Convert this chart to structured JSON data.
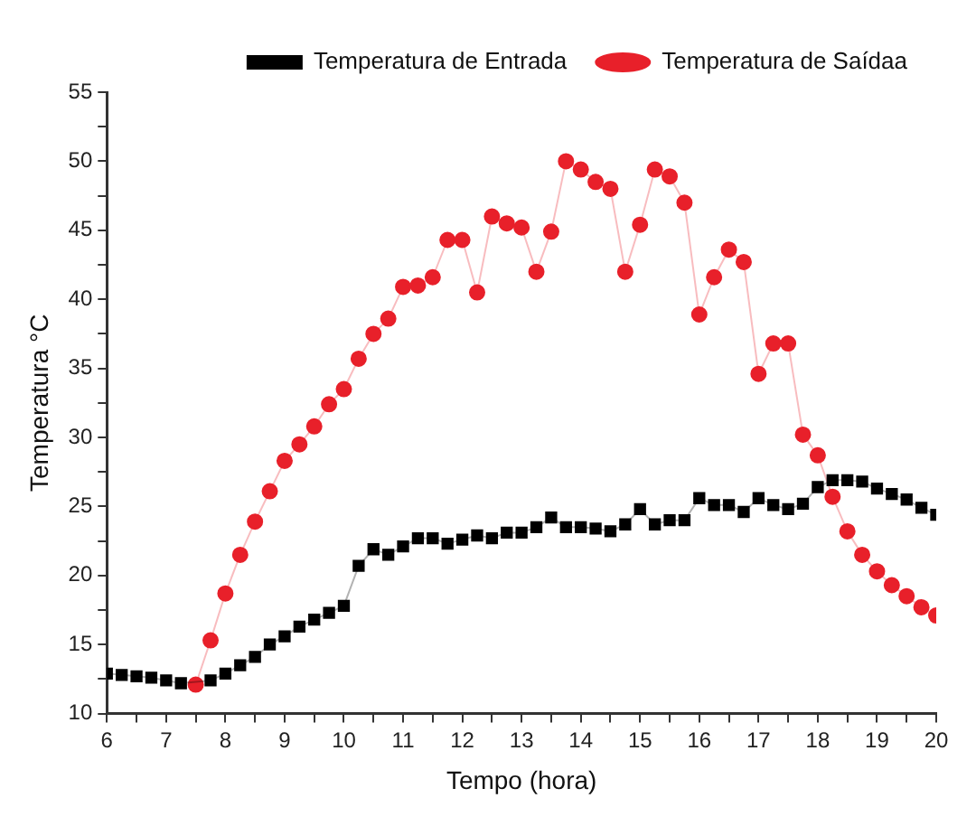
{
  "chart_data": {
    "type": "line",
    "xlabel": "Tempo (hora)",
    "ylabel": "Temperatura °C",
    "legend": "top right",
    "grid": false,
    "xlim": [
      6,
      20
    ],
    "ylim": [
      10,
      55
    ],
    "xticks": [
      6,
      {
        "value": 6.5,
        "label": null
      },
      7,
      {
        "value": 7.5,
        "label": null
      },
      8,
      {
        "value": 8.5,
        "label": null
      },
      9,
      {
        "value": 9.5,
        "label": null
      },
      10,
      {
        "value": 10.5,
        "label": null
      },
      11,
      {
        "value": 11.5,
        "label": null
      },
      12,
      {
        "value": 12.5,
        "label": null
      },
      13,
      {
        "value": 13.5,
        "label": null
      },
      14,
      {
        "value": 14.5,
        "label": null
      },
      15,
      {
        "value": 15.5,
        "label": null
      },
      16,
      {
        "value": 16.5,
        "label": null
      },
      17,
      {
        "value": 17.5,
        "label": null
      },
      18,
      {
        "value": 18.5,
        "label": null
      },
      19,
      {
        "value": 19.5,
        "label": null
      },
      20
    ],
    "yticks": [
      10,
      {
        "value": 12.5,
        "label": null
      },
      15,
      {
        "value": 17.5,
        "label": null
      },
      20,
      {
        "value": 22.5,
        "label": null
      },
      25,
      {
        "value": 27.5,
        "label": null
      },
      30,
      {
        "value": 32.5,
        "label": null
      },
      35,
      {
        "value": 37.5,
        "label": null
      },
      40,
      {
        "value": 42.5,
        "label": null
      },
      45,
      {
        "value": 47.5,
        "label": null
      },
      50,
      {
        "value": 52.5,
        "label": null
      },
      55
    ],
    "series": [
      {
        "name": "Temperatura de Entrada",
        "color": "#000000",
        "marker": "square",
        "x": [
          6,
          6.25,
          6.5,
          6.75,
          7,
          7.25,
          7.5,
          7.75,
          8,
          8.25,
          8.5,
          8.75,
          9,
          9.25,
          9.5,
          9.75,
          10,
          10.25,
          10.5,
          10.75,
          11,
          11.25,
          11.5,
          11.75,
          12,
          12.25,
          12.5,
          12.75,
          13,
          13.25,
          13.5,
          13.75,
          14,
          14.25,
          14.5,
          14.75,
          15,
          15.25,
          15.5,
          15.75,
          16,
          16.25,
          16.5,
          16.75,
          17,
          17.25,
          17.5,
          17.75,
          18,
          18.25,
          18.5,
          18.75,
          19,
          19.25,
          19.5,
          19.75,
          20
        ],
        "values": [
          12.9,
          12.8,
          12.7,
          12.6,
          12.4,
          12.2,
          null,
          12.4,
          12.9,
          13.5,
          14.1,
          15.0,
          15.6,
          16.3,
          16.8,
          17.3,
          17.8,
          20.7,
          21.9,
          21.5,
          22.1,
          22.7,
          22.7,
          22.3,
          22.6,
          22.9,
          22.7,
          23.1,
          23.1,
          23.5,
          24.2,
          23.5,
          23.5,
          23.4,
          23.2,
          23.7,
          24.8,
          23.7,
          24.0,
          24.0,
          25.6,
          25.1,
          25.1,
          24.6,
          25.6,
          25.1,
          24.8,
          25.2,
          26.4,
          26.9,
          26.9,
          26.8,
          26.3,
          25.9,
          25.5,
          24.9,
          24.4
        ]
      },
      {
        "name": "Temperatura de Saídaa",
        "color": "#e8202a",
        "marker": "circle",
        "x": [
          7.5,
          7.75,
          8,
          8.25,
          8.5,
          8.75,
          9,
          9.25,
          9.5,
          9.75,
          10,
          10.25,
          10.5,
          10.75,
          11,
          11.25,
          11.5,
          11.75,
          12,
          12.25,
          12.5,
          12.75,
          13,
          13.25,
          13.5,
          13.75,
          14,
          14.25,
          14.5,
          14.75,
          15,
          15.25,
          15.5,
          15.75,
          16,
          16.25,
          16.5,
          16.75,
          17,
          17.25,
          17.5,
          17.75,
          18,
          18.25,
          18.5,
          18.75,
          19,
          19.25,
          19.5,
          19.75,
          20
        ],
        "values": [
          12.1,
          15.3,
          18.7,
          21.5,
          23.9,
          26.1,
          28.3,
          29.5,
          30.8,
          32.4,
          33.5,
          35.7,
          37.5,
          38.6,
          40.9,
          41.0,
          41.6,
          44.3,
          44.3,
          40.5,
          46.0,
          45.5,
          45.2,
          42.0,
          44.9,
          50.0,
          49.4,
          48.5,
          48.0,
          42.0,
          45.4,
          49.4,
          48.9,
          47.0,
          38.9,
          41.6,
          43.6,
          42.7,
          34.6,
          36.8,
          36.8,
          30.2,
          28.7,
          25.7,
          23.2,
          21.5,
          20.3,
          19.3,
          18.5,
          17.7,
          17.1
        ]
      }
    ]
  }
}
